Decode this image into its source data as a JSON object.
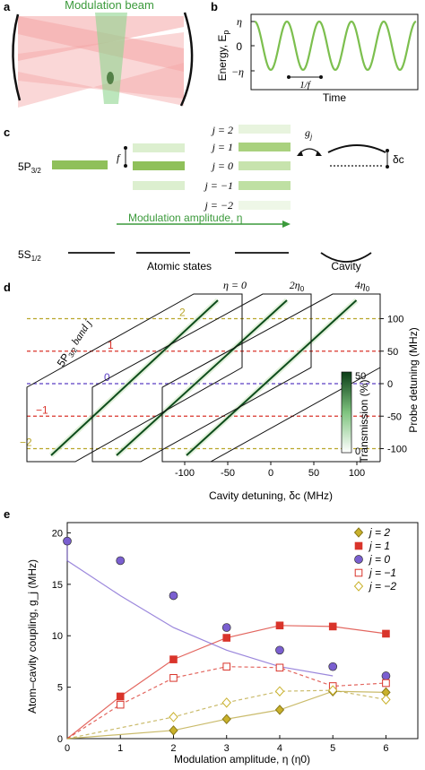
{
  "panel_labels": {
    "a": "a",
    "b": "b",
    "c": "c",
    "d": "d",
    "e": "e"
  },
  "panel_a": {
    "beam_label": "Modulation beam"
  },
  "panel_b": {
    "ylabel": "Energy, E",
    "ylabel_sub": "p",
    "xlabel": "Time",
    "yticks": [
      "η",
      "0",
      "−η"
    ],
    "period_label": "1/f"
  },
  "panel_c": {
    "level_5p": "5P",
    "level_5p_sub": "3/2",
    "level_5s": "5S",
    "level_5s_sub": "1/2",
    "f_label": "f",
    "j_labels": [
      "j = 2",
      "j = 1",
      "j = 0",
      "j = −1",
      "j = −2"
    ],
    "g_label": "g",
    "g_sub": "j",
    "dc_label": "δc",
    "arrow_label": "Modulation amplitude, η",
    "atomic_states": "Atomic states",
    "cavity": "Cavity"
  },
  "panel_d": {
    "eta_labels": [
      "η = 0",
      "2η",
      "4η"
    ],
    "eta_subs": [
      "",
      "0",
      "0"
    ],
    "band_label": "5P",
    "band_sub": "3/2",
    "band_label_tail": "band j",
    "band_markers": [
      "2",
      "1",
      "0",
      "−1",
      "−2"
    ],
    "band_colors": [
      "#b9a62a",
      "#d9342b",
      "#5b3fc4",
      "#d9342b",
      "#b9a62a"
    ],
    "right_ticks": [
      "100",
      "50",
      "0",
      "-50",
      "-100"
    ],
    "right_label": "Probe detuning (MHz)",
    "colorbar_label": "Transmission (%)",
    "colorbar_ticks": [
      "50",
      "0"
    ],
    "xticks": [
      "-100",
      "-50",
      "0",
      "50",
      "100"
    ],
    "xlabel": "Cavity detuning, δc (MHz)"
  },
  "chart_data": {
    "type": "scatter",
    "xlabel": "Modulation amplitude, η (η0)",
    "ylabel": "Atom–cavity coupling, g_j (MHz)",
    "xlim": [
      0,
      6.6
    ],
    "ylim": [
      0,
      21
    ],
    "xticks": [
      0,
      1,
      2,
      3,
      4,
      5,
      6
    ],
    "yticks": [
      0,
      5,
      10,
      15,
      20
    ],
    "legend_position": "top-right",
    "series": [
      {
        "name": "j = 2",
        "marker": "diamond",
        "filled": true,
        "color": "#c9b12b",
        "x": [
          2,
          3,
          4,
          5,
          6
        ],
        "y": [
          0.8,
          1.9,
          2.8,
          4.6,
          4.5
        ]
      },
      {
        "name": "j = 1",
        "marker": "square",
        "filled": true,
        "color": "#d9342b",
        "x": [
          1,
          2,
          3,
          4,
          5,
          6
        ],
        "y": [
          4.1,
          7.7,
          9.8,
          11.0,
          10.9,
          10.2
        ]
      },
      {
        "name": "j = 0",
        "marker": "circle",
        "filled": true,
        "color": "#7a5fd0",
        "x": [
          0,
          1,
          2,
          3,
          4,
          5,
          6
        ],
        "y": [
          19.2,
          17.3,
          13.9,
          10.8,
          8.6,
          7.0,
          6.1
        ]
      },
      {
        "name": "j = −1",
        "marker": "square",
        "filled": false,
        "color": "#d9342b",
        "x": [
          1,
          2,
          3,
          4,
          5,
          6
        ],
        "y": [
          3.3,
          5.9,
          7.0,
          6.9,
          5.1,
          5.4
        ]
      },
      {
        "name": "j = −2",
        "marker": "diamond",
        "filled": false,
        "color": "#c9b12b",
        "x": [
          2,
          3,
          4,
          5,
          6
        ],
        "y": [
          2.1,
          3.5,
          4.6,
          4.7,
          3.8
        ]
      }
    ]
  }
}
